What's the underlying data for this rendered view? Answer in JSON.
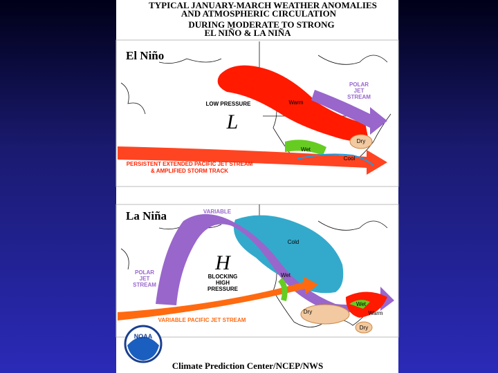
{
  "header": {
    "title_lines": [
      "TYPICAL JANUARY-MARCH WEATHER ANOMALIES",
      "AND ATMOSPHERIC CIRCULATION",
      "DURING MODERATE TO STRONG",
      "EL NIÑO & LA NIÑA"
    ]
  },
  "panels": [
    {
      "label": "El Niño",
      "annotations": [
        [
          "POLAR",
          "JET",
          "STREAM"
        ],
        [
          "LOW PRESSURE"
        ],
        [
          "L"
        ],
        [
          "Warm"
        ],
        [
          "Dry"
        ],
        [
          "Wet"
        ],
        [
          "Cool"
        ],
        [
          "PERSISTENT EXTENDED PACIFIC JET STREAM",
          "& AMPLIFIED STORM TRACK"
        ]
      ]
    },
    {
      "label": "La Niña",
      "annotations": [
        [
          "VARIABLE"
        ],
        [
          "Cold"
        ],
        [
          "H"
        ],
        [
          "BLOCKING",
          "HIGH",
          "PRESSURE"
        ],
        [
          "POLAR",
          "JET",
          "STREAM"
        ],
        [
          "Wet"
        ],
        [
          "Wet"
        ],
        [
          "Warm"
        ],
        [
          "Dry"
        ],
        [
          "Dry"
        ],
        [
          "VARIABLE PACIFIC JET STREAM"
        ]
      ]
    }
  ],
  "footer": {
    "logo": "NOAA",
    "credit": "Climate Prediction Center/NCEP/NWS"
  }
}
